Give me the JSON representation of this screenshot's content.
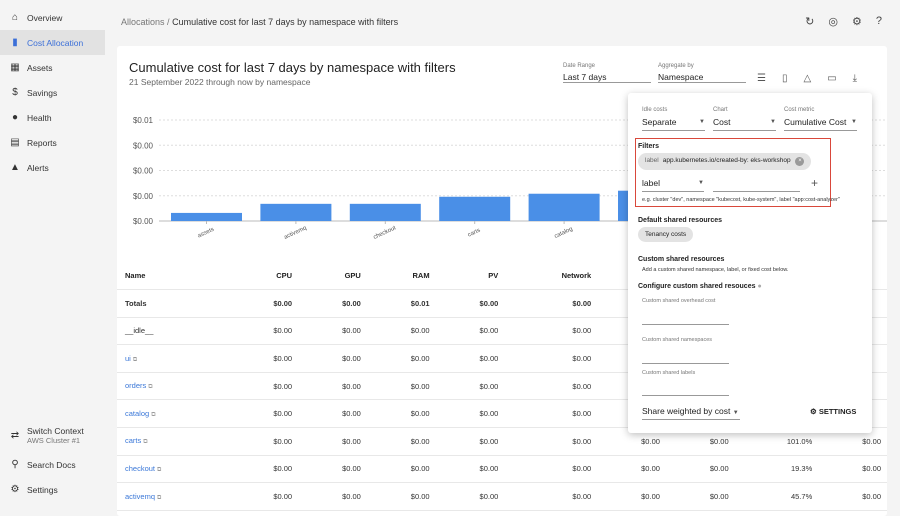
{
  "sidebar": {
    "items": [
      {
        "label": "Overview",
        "icon": "home-icon",
        "glyph": "⌂"
      },
      {
        "label": "Cost Allocation",
        "icon": "bar-chart-icon",
        "glyph": "▮",
        "active": true
      },
      {
        "label": "Assets",
        "icon": "assets-icon",
        "glyph": "▦"
      },
      {
        "label": "Savings",
        "icon": "dollar-icon",
        "glyph": "$"
      },
      {
        "label": "Health",
        "icon": "alert-circle-icon",
        "glyph": "●"
      },
      {
        "label": "Reports",
        "icon": "clipboard-icon",
        "glyph": "▤"
      },
      {
        "label": "Alerts",
        "icon": "bell-icon",
        "glyph": "▲"
      }
    ],
    "switch_context": "Switch Context",
    "context_value": "AWS Cluster #1",
    "search_docs": "Search Docs",
    "settings": "Settings"
  },
  "breadcrumb": {
    "parent": "Allocations",
    "sep": "/",
    "current": "Cumulative cost for last 7 days by namespace with filters"
  },
  "report": {
    "title": "Cumulative cost for last 7 days by namespace with filters",
    "subtitle": "21 September 2022 through now by namespace",
    "date_range_label": "Date Range",
    "date_range": "Last 7 days",
    "aggregate_label": "Aggregate by",
    "aggregate": "Namespace"
  },
  "chart_data": {
    "type": "bar",
    "categories": [
      "assets",
      "activemq",
      "checkout",
      "carts",
      "catalog",
      ""
    ],
    "values": [
      0.0008,
      0.0017,
      0.0017,
      0.0024,
      0.0027,
      0.003
    ],
    "yticks": [
      "$0.00",
      "$0.00",
      "$0.00",
      "$0.00",
      "$0.01"
    ],
    "ylim": [
      0,
      0.01
    ],
    "grid": true,
    "color": "#4a8fe7"
  },
  "table": {
    "headers": [
      "Name",
      "CPU",
      "GPU",
      "RAM",
      "PV",
      "Network",
      "",
      "",
      "",
      ""
    ],
    "rows": [
      {
        "name": "Totals",
        "link": false,
        "cells": [
          "$0.00",
          "$0.00",
          "$0.01",
          "$0.00",
          "$0.00",
          "",
          "",
          "",
          ""
        ]
      },
      {
        "name": "__idle__",
        "link": false,
        "cells": [
          "$0.00",
          "$0.00",
          "$0.00",
          "$0.00",
          "$0.00",
          "",
          "",
          "",
          ""
        ]
      },
      {
        "name": "ui",
        "link": true,
        "cells": [
          "$0.00",
          "$0.00",
          "$0.00",
          "$0.00",
          "$0.00",
          "",
          "",
          "",
          ""
        ]
      },
      {
        "name": "orders",
        "link": true,
        "cells": [
          "$0.00",
          "$0.00",
          "$0.00",
          "$0.00",
          "$0.00",
          "",
          "",
          "",
          ""
        ]
      },
      {
        "name": "catalog",
        "link": true,
        "cells": [
          "$0.00",
          "$0.00",
          "$0.00",
          "$0.00",
          "$0.00",
          "",
          "",
          "",
          ""
        ]
      },
      {
        "name": "carts",
        "link": true,
        "cells": [
          "$0.00",
          "$0.00",
          "$0.00",
          "$0.00",
          "$0.00",
          "$0.00",
          "$0.00",
          "101.0%",
          "$0.00"
        ]
      },
      {
        "name": "checkout",
        "link": true,
        "cells": [
          "$0.00",
          "$0.00",
          "$0.00",
          "$0.00",
          "$0.00",
          "$0.00",
          "$0.00",
          "19.3%",
          "$0.00"
        ]
      },
      {
        "name": "activemq",
        "link": true,
        "cells": [
          "$0.00",
          "$0.00",
          "$0.00",
          "$0.00",
          "$0.00",
          "$0.00",
          "$0.00",
          "45.7%",
          "$0.00"
        ]
      }
    ]
  },
  "popup": {
    "idle_label": "Idle costs",
    "idle": "Separate",
    "chart_label": "Chart",
    "chart": "Cost",
    "metric_label": "Cost metric",
    "metric": "Cumulative Cost",
    "filters": "Filters",
    "chip_key": "label",
    "chip_value": "app.kubernetes.io/created-by: eks-workshop",
    "filter_type": "label",
    "filter_value": "",
    "filter_hint": "e.g. cluster \"dev\", namespace \"kubecost, kube-system\", label \"app:cost-analyzer\"",
    "default_shared": "Default shared resources",
    "tenancy": "Tenancy costs",
    "custom_shared": "Custom shared resources",
    "custom_hint": "Add a custom shared namespace, label, or fixed cost below.",
    "configure": "Configure custom shared resouces",
    "f1": "Custom shared overhead cost",
    "f2": "Custom shared namespaces",
    "f3": "Custom shared labels",
    "share": "Share weighted by cost",
    "settings": "SETTINGS"
  },
  "colors": {
    "accent": "#3b6fd8",
    "bar": "#4a8fe7",
    "filter_border": "#d9483b"
  }
}
